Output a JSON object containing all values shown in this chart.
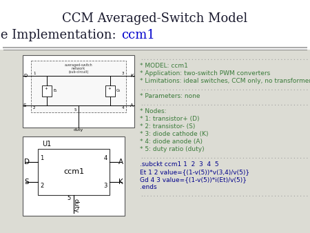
{
  "title_line1": "CCM Averaged-Switch Model",
  "title_line2": "PSpice Implementation: ",
  "title_ccm1": "ccm1",
  "title_fontsize": 13,
  "title_color": "#1a1a2e",
  "ccm1_color": "#0000cc",
  "bg_color": "#ffffff",
  "content_bg": "#e8e8e0",
  "separator_color": "#999999",
  "dot_line_color": "#999999",
  "green_text_color": "#3a7a3a",
  "blue_text_color": "#00008B",
  "right_text_lines": [
    {
      "text": "* MODEL: ccm1",
      "color": "#3a7a3a",
      "bold": false
    },
    {
      "text": "* Application: two-switch PWM converters",
      "color": "#3a7a3a",
      "bold": false
    },
    {
      "text": "* Limitations: ideal switches, CCM only, no transformer",
      "color": "#3a7a3a",
      "bold": false
    },
    {
      "text": "* Parameters: none",
      "color": "#3a7a3a",
      "bold": false
    },
    {
      "text": "* Nodes:",
      "color": "#3a7a3a",
      "bold": false
    },
    {
      "text": "* 1: transistor+ (D)",
      "color": "#3a7a3a",
      "bold": false
    },
    {
      "text": "* 2: transistor- (S)",
      "color": "#3a7a3a",
      "bold": false
    },
    {
      "text": "* 3: diode cathode (K)",
      "color": "#3a7a3a",
      "bold": false
    },
    {
      "text": "* 4: diode anode (A)",
      "color": "#3a7a3a",
      "bold": false
    },
    {
      "text": "* 5: duty ratio (duty)",
      "color": "#3a7a3a",
      "bold": false
    },
    {
      "text": ".subckt ccm1 1  2  3  4  5",
      "color": "#00008B",
      "bold": false
    },
    {
      "text": "Et 1 2 value={(1-v(5))*v(3,4)/v(5)}",
      "color": "#00008B",
      "bold": false
    },
    {
      "text": "Gd 4 3 value={(1-v(5))*i(Et)/v(5)}",
      "color": "#00008B",
      "bold": false
    },
    {
      "text": ".ends",
      "color": "#00008B",
      "bold": false
    }
  ],
  "dots": "............................................................"
}
